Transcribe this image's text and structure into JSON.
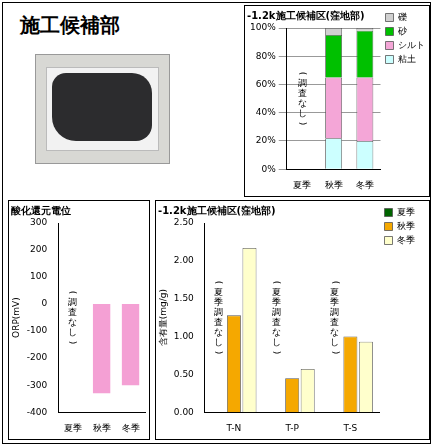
{
  "title": "施工候補部",
  "chart_data": [
    {
      "type": "bar",
      "title": "-1.2k施工候補区(窪地部)",
      "stacked": true,
      "categories": [
        "夏季",
        "秋季",
        "冬季"
      ],
      "series": [
        {
          "name": "粘土",
          "color": "#ccffff",
          "values": [
            null,
            22,
            20
          ]
        },
        {
          "name": "シルト",
          "color": "#f4a6d7",
          "values": [
            null,
            43,
            45
          ]
        },
        {
          "name": "砂",
          "color": "#00c000",
          "values": [
            null,
            30,
            33
          ]
        },
        {
          "name": "礫",
          "color": "#d0d0d0",
          "values": [
            null,
            5,
            2
          ]
        }
      ],
      "ylim": [
        0,
        100
      ],
      "yticks": [
        {
          "value": 0,
          "label": "0%"
        },
        {
          "value": 20,
          "label": "20%"
        },
        {
          "value": 40,
          "label": "40%"
        },
        {
          "value": 60,
          "label": "60%"
        },
        {
          "value": 80,
          "label": "80%"
        },
        {
          "value": 100,
          "label": "100%"
        }
      ],
      "grid": true,
      "legend": "right",
      "annotations": [
        {
          "text": "(調査なし)",
          "category": "夏季"
        }
      ]
    },
    {
      "type": "bar",
      "title": "酸化還元電位",
      "y_label": "ORP(mV)",
      "categories": [
        "夏季",
        "秋季",
        "冬季"
      ],
      "values": [
        null,
        -330,
        -300
      ],
      "color": "#f4a0d4",
      "ylim": [
        -400,
        300
      ],
      "yticks": [
        -400,
        -300,
        -200,
        -100,
        0,
        100,
        200,
        300
      ],
      "grid": false,
      "annotations": [
        {
          "text": "(調査なし)",
          "category": "夏季"
        }
      ]
    },
    {
      "type": "bar",
      "title": "-1.2k施工候補区(窪地部)",
      "y_label": "含有量(mg/g)",
      "categories": [
        "T-N",
        "T-P",
        "T-S"
      ],
      "series": [
        {
          "name": "夏季",
          "color": "#006400",
          "values": [
            null,
            null,
            null
          ]
        },
        {
          "name": "秋季",
          "color": "#f5a800",
          "values": [
            1.28,
            0.45,
            1.0
          ]
        },
        {
          "name": "冬季",
          "color": "#ffffcc",
          "values": [
            2.17,
            0.57,
            0.93
          ]
        }
      ],
      "ylim": [
        0,
        2.5
      ],
      "yticks": [
        {
          "value": 0,
          "label": "0.00"
        },
        {
          "value": 0.5,
          "label": "0.50"
        },
        {
          "value": 1,
          "label": "1.00"
        },
        {
          "value": 1.5,
          "label": "1.50"
        },
        {
          "value": 2,
          "label": "2.00"
        },
        {
          "value": 2.5,
          "label": "2.50"
        }
      ],
      "grid": false,
      "legend": "right",
      "annotations": [
        {
          "text": "(夏季調査なし)",
          "category": "T-N",
          "series": "夏季"
        },
        {
          "text": "(夏季調査なし)",
          "category": "T-P",
          "series": "夏季"
        },
        {
          "text": "(夏季調査なし)",
          "category": "T-S",
          "series": "夏季"
        }
      ]
    }
  ]
}
